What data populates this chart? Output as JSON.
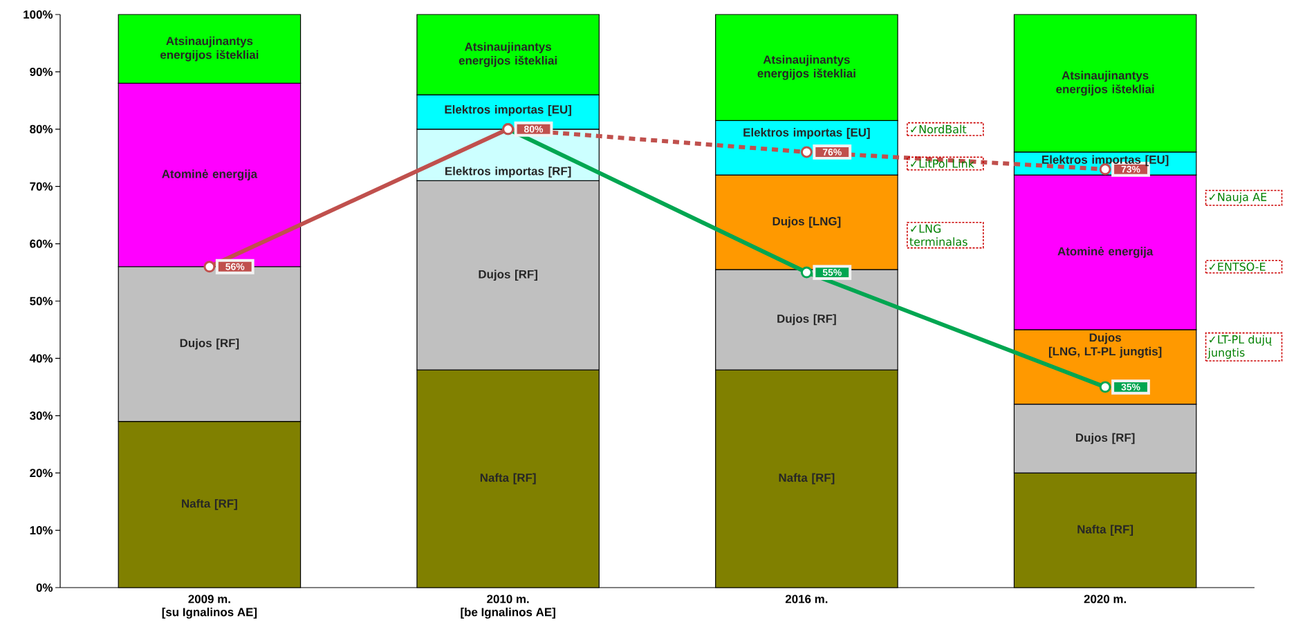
{
  "chart_data": {
    "type": "bar",
    "stacked": true,
    "grid": false,
    "categories": [
      "2009 m.\n[su Ignalinos AE]",
      "2010 m.\n[be Ignalinos AE]",
      "2016 m.",
      "2020 m."
    ],
    "ylim": [
      0,
      100
    ],
    "yticks": [
      {
        "value": 0,
        "label": "0%"
      },
      {
        "value": 10,
        "label": "10%"
      },
      {
        "value": 20,
        "label": "20%"
      },
      {
        "value": 30,
        "label": "30%"
      },
      {
        "value": 40,
        "label": "40%"
      },
      {
        "value": 50,
        "label": "50%"
      },
      {
        "value": 60,
        "label": "60%"
      },
      {
        "value": 70,
        "label": "70%"
      },
      {
        "value": 80,
        "label": "80%"
      },
      {
        "value": 90,
        "label": "90%"
      },
      {
        "value": 100,
        "label": "100%"
      }
    ],
    "series": [
      {
        "name": "Nafta [RF]",
        "color": "#808000",
        "values": [
          29,
          38,
          38,
          20
        ]
      },
      {
        "name": "Dujos [RF]",
        "color": "#c0c0c0",
        "values": [
          27,
          33,
          17.5,
          12
        ]
      },
      {
        "name": "Elektros importas [RF]",
        "color": "#ccffff",
        "values": [
          null,
          9,
          null,
          null
        ]
      },
      {
        "name": "Dujos [LNG]",
        "color": "#ff9900",
        "values": [
          null,
          null,
          16.5,
          null
        ]
      },
      {
        "name": "Dujos\n[LNG, LT-PL jungtis]",
        "color": "#ff9900",
        "values": [
          null,
          null,
          null,
          13
        ]
      },
      {
        "name": "Atominė energija",
        "color": "#ff00ff",
        "values": [
          32,
          null,
          null,
          27
        ]
      },
      {
        "name": "Elektros importas [EU]",
        "color": "#00ffff",
        "values": [
          null,
          6,
          9.5,
          4
        ]
      },
      {
        "name": "Atsinaujinantys\nenergijos ištekliai",
        "color": "#00ff00",
        "values": [
          12,
          14,
          18.5,
          24
        ]
      },
      {
        "type": "line",
        "color": "#00a651",
        "values": [
          null,
          80,
          55,
          35
        ],
        "value_labels": [
          null,
          null,
          "55%",
          "35%"
        ],
        "marker": "circle",
        "line_style": "solid"
      },
      {
        "type": "line",
        "color": "#c0504d",
        "values": [
          null,
          80,
          76,
          73
        ],
        "value_labels": [
          null,
          null,
          "76%",
          "73%"
        ],
        "marker": "circle",
        "line_style": "dashed"
      },
      {
        "type": "line",
        "color": "#c0504d",
        "values": [
          56,
          80,
          null,
          null
        ],
        "value_labels": [
          "56%",
          "80%",
          null,
          null
        ],
        "marker": "circle",
        "line_style": "solid"
      }
    ],
    "annotations": [
      "✓NordBalt",
      "✓LitPol Link",
      "✓LNG terminalas",
      "✓Nauja AE",
      "✓ENTSO-E",
      "✓LT-PL dujų jungtis"
    ]
  }
}
